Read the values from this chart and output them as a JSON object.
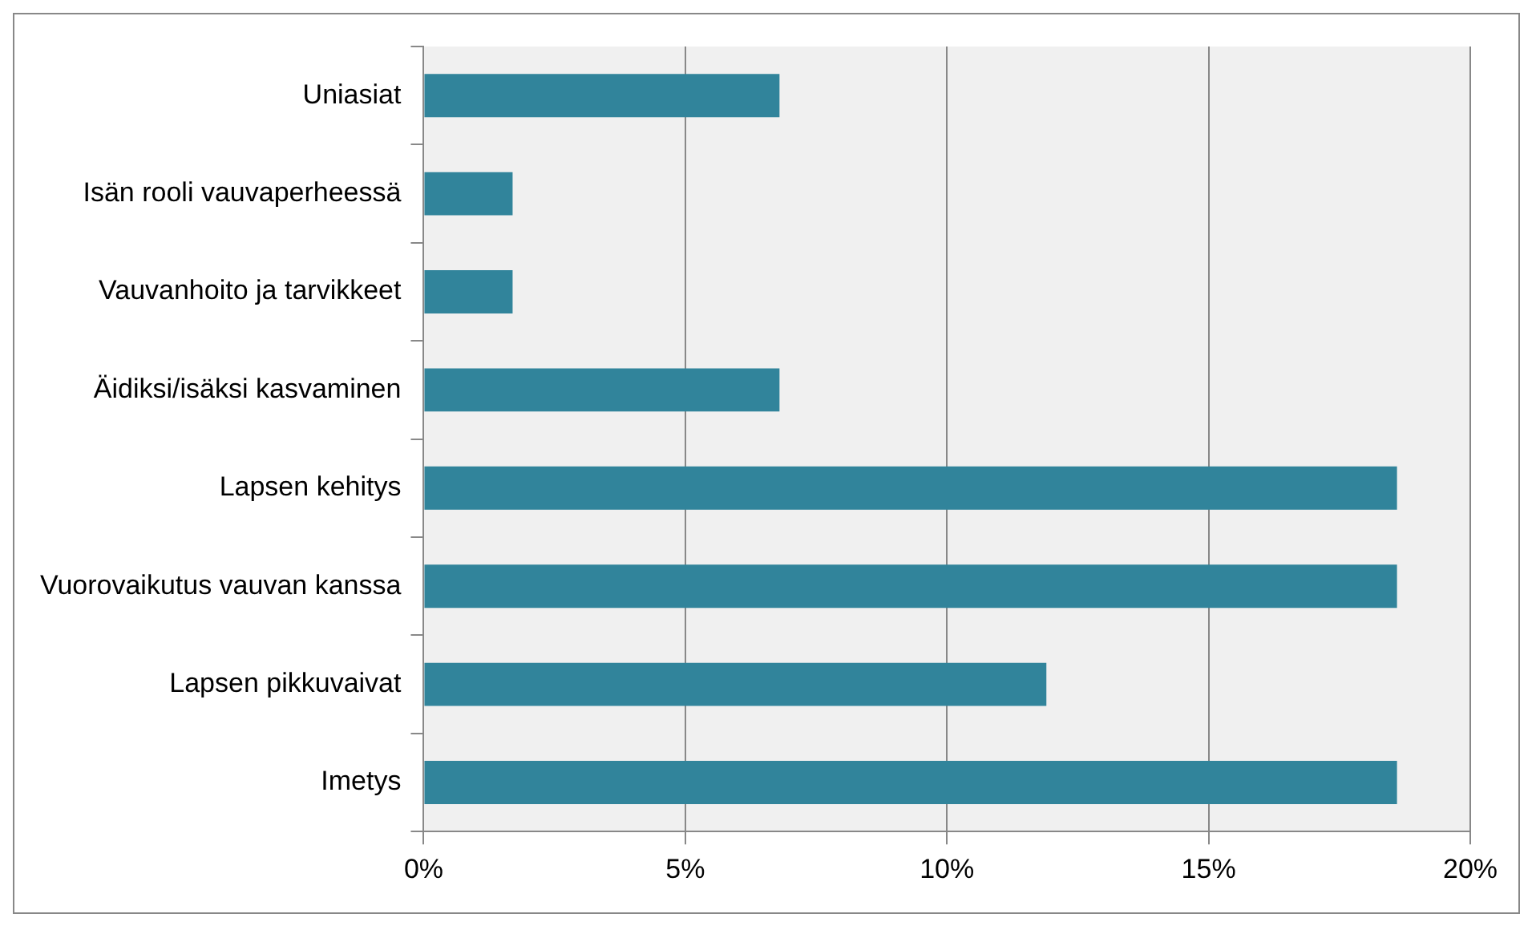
{
  "chart_data": {
    "type": "bar",
    "orientation": "horizontal",
    "categories": [
      "Uniasiat",
      "Isän rooli vauvaperheessä",
      "Vauvanhoito ja tarvikkeet",
      "Äidiksi/isäksi kasvaminen",
      "Lapsen kehitys",
      "Vuorovaikutus vauvan kanssa",
      "Lapsen pikkuvaivat",
      "Imetys"
    ],
    "values": [
      6.8,
      1.7,
      1.7,
      6.8,
      18.6,
      18.6,
      11.9,
      18.6
    ],
    "color": "#31849b",
    "xlim": [
      0,
      20
    ],
    "xticks": [
      {
        "value": 0,
        "label": "0%"
      },
      {
        "value": 5,
        "label": "5%"
      },
      {
        "value": 10,
        "label": "10%"
      },
      {
        "value": 15,
        "label": "15%"
      },
      {
        "value": 20,
        "label": "20%"
      }
    ],
    "grid": "x",
    "legend": false
  }
}
